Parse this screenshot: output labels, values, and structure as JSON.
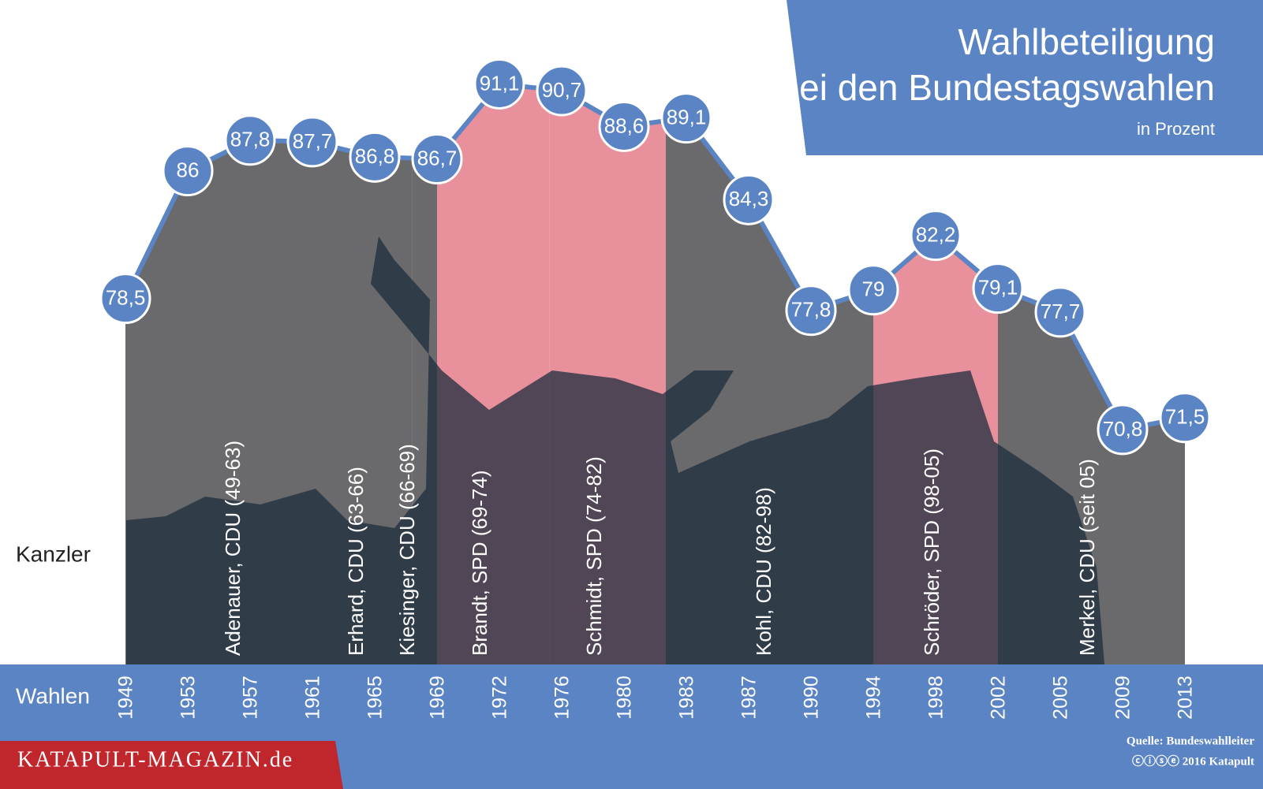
{
  "chart_data": {
    "type": "area",
    "title": [
      "Wahlbeteiligung",
      "bei den Bundestagswahlen"
    ],
    "subtitle": "in Prozent",
    "categories": [
      "1949",
      "1953",
      "1957",
      "1961",
      "1965",
      "1969",
      "1972",
      "1976",
      "1980",
      "1983",
      "1987",
      "1990",
      "1994",
      "1998",
      "2002",
      "2005",
      "2009",
      "2013"
    ],
    "values": [
      78.5,
      86,
      87.8,
      87.7,
      86.8,
      86.7,
      91.1,
      90.7,
      88.6,
      89.1,
      84.3,
      77.8,
      79,
      82.2,
      79.1,
      77.7,
      70.8,
      71.5
    ],
    "value_labels": [
      "78,5",
      "86",
      "87,8",
      "87,7",
      "86,8",
      "86,7",
      "91,1",
      "90,7",
      "88,6",
      "89,1",
      "84,3",
      "77,8",
      "79",
      "82,2",
      "79,1",
      "77,7",
      "70,8",
      "71,5"
    ],
    "color": "#5b84c4",
    "ylim": [
      57,
      92
    ],
    "x_axis_label": "Wahlen",
    "band_label": "Kanzler",
    "chancellors": [
      {
        "label": "Adenauer, CDU (49-63)",
        "color": "#6a6a6c"
      },
      {
        "label": "Erhard, CDU (63-66)",
        "color": "#6a6a6c"
      },
      {
        "label": "Kiesinger, CDU (66-69)",
        "color": "#6a6a6c"
      },
      {
        "label": "Brandt, SPD (69-74)",
        "color": "#e8909c"
      },
      {
        "label": "Schmidt, SPD (74-82)",
        "color": "#e8909c"
      },
      {
        "label": "Kohl, CDU (82-98)",
        "color": "#6a6a6c"
      },
      {
        "label": "Schröder, SPD (98-05)",
        "color": "#e8909c"
      },
      {
        "label": "Merkel, CDU (seit 05)",
        "color": "#6a6a6c"
      }
    ],
    "brand": "KATAPULT-MAGAZIN.de",
    "source": "Quelle: Bundeswahlleiter",
    "copyright": "ⓒⓘⓢⓔ 2016 Katapult"
  }
}
